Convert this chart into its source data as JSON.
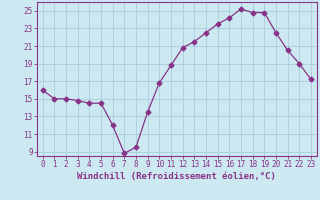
{
  "hours": [
    0,
    1,
    2,
    3,
    4,
    5,
    6,
    7,
    8,
    9,
    10,
    11,
    12,
    13,
    14,
    15,
    16,
    17,
    18,
    19,
    20,
    21,
    22,
    23
  ],
  "values": [
    16,
    15,
    15,
    14.8,
    14.5,
    14.5,
    12,
    8.8,
    9.5,
    13.5,
    16.8,
    18.8,
    20.8,
    21.5,
    22.5,
    23.5,
    24.2,
    25.2,
    24.8,
    24.8,
    22.5,
    20.5,
    19,
    17.2
  ],
  "line_color": "#883388",
  "marker": "D",
  "marker_size": 2.5,
  "background_color": "#cce8f0",
  "grid_color": "#aaccdd",
  "xlabel": "Windchill (Refroidissement éolien,°C)",
  "ylim": [
    8.5,
    26.0
  ],
  "yticks": [
    9,
    11,
    13,
    15,
    17,
    19,
    21,
    23,
    25
  ],
  "xticks": [
    0,
    1,
    2,
    3,
    4,
    5,
    6,
    7,
    8,
    9,
    10,
    11,
    12,
    13,
    14,
    15,
    16,
    17,
    18,
    19,
    20,
    21,
    22,
    23
  ],
  "tick_fontsize": 5.5,
  "xlabel_fontsize": 6.5
}
